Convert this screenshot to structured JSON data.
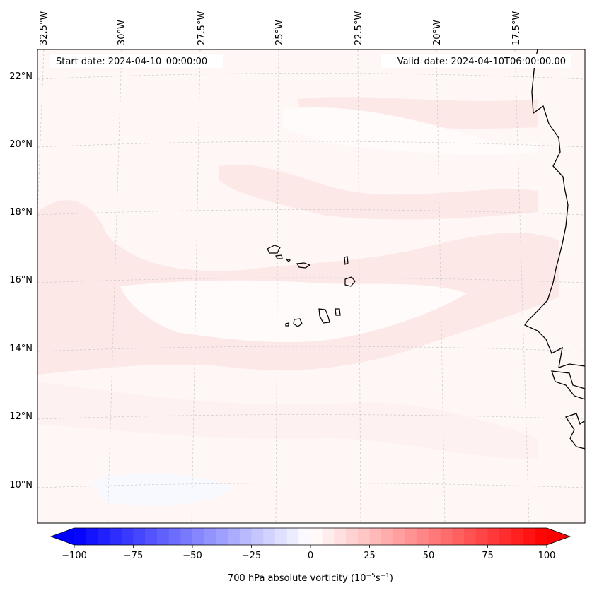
{
  "map": {
    "start_date_label": "Start date: 2024-04-10_00:00:00",
    "valid_date_label": "Valid_date: 2024-04-10T06:00:00.00",
    "lon_labels": [
      "32.5°W",
      "30°W",
      "27.5°W",
      "25°W",
      "22.5°W",
      "20°W",
      "17.5°W"
    ],
    "lat_labels": [
      "22°N",
      "20°N",
      "18°N",
      "16°N",
      "14°N",
      "12°N",
      "10°N"
    ]
  },
  "colorbar": {
    "ticks": [
      "−100",
      "−75",
      "−50",
      "−25",
      "0",
      "25",
      "50",
      "75",
      "100"
    ],
    "label": "700 hPa absolute vorticity (10",
    "label_exp1": "−5",
    "label_mid": "s",
    "label_exp2": "−1",
    "label_end": ")",
    "min": -100,
    "max": 100,
    "step": 5,
    "color_min": "#0000ff",
    "color_mid": "#ffffff",
    "color_max": "#ff0000"
  },
  "colors": {
    "background_field": "#fff6f6",
    "band_light_pink": "#fde6e6",
    "near_white": "#fffbfb",
    "coastline": "#000000"
  }
}
